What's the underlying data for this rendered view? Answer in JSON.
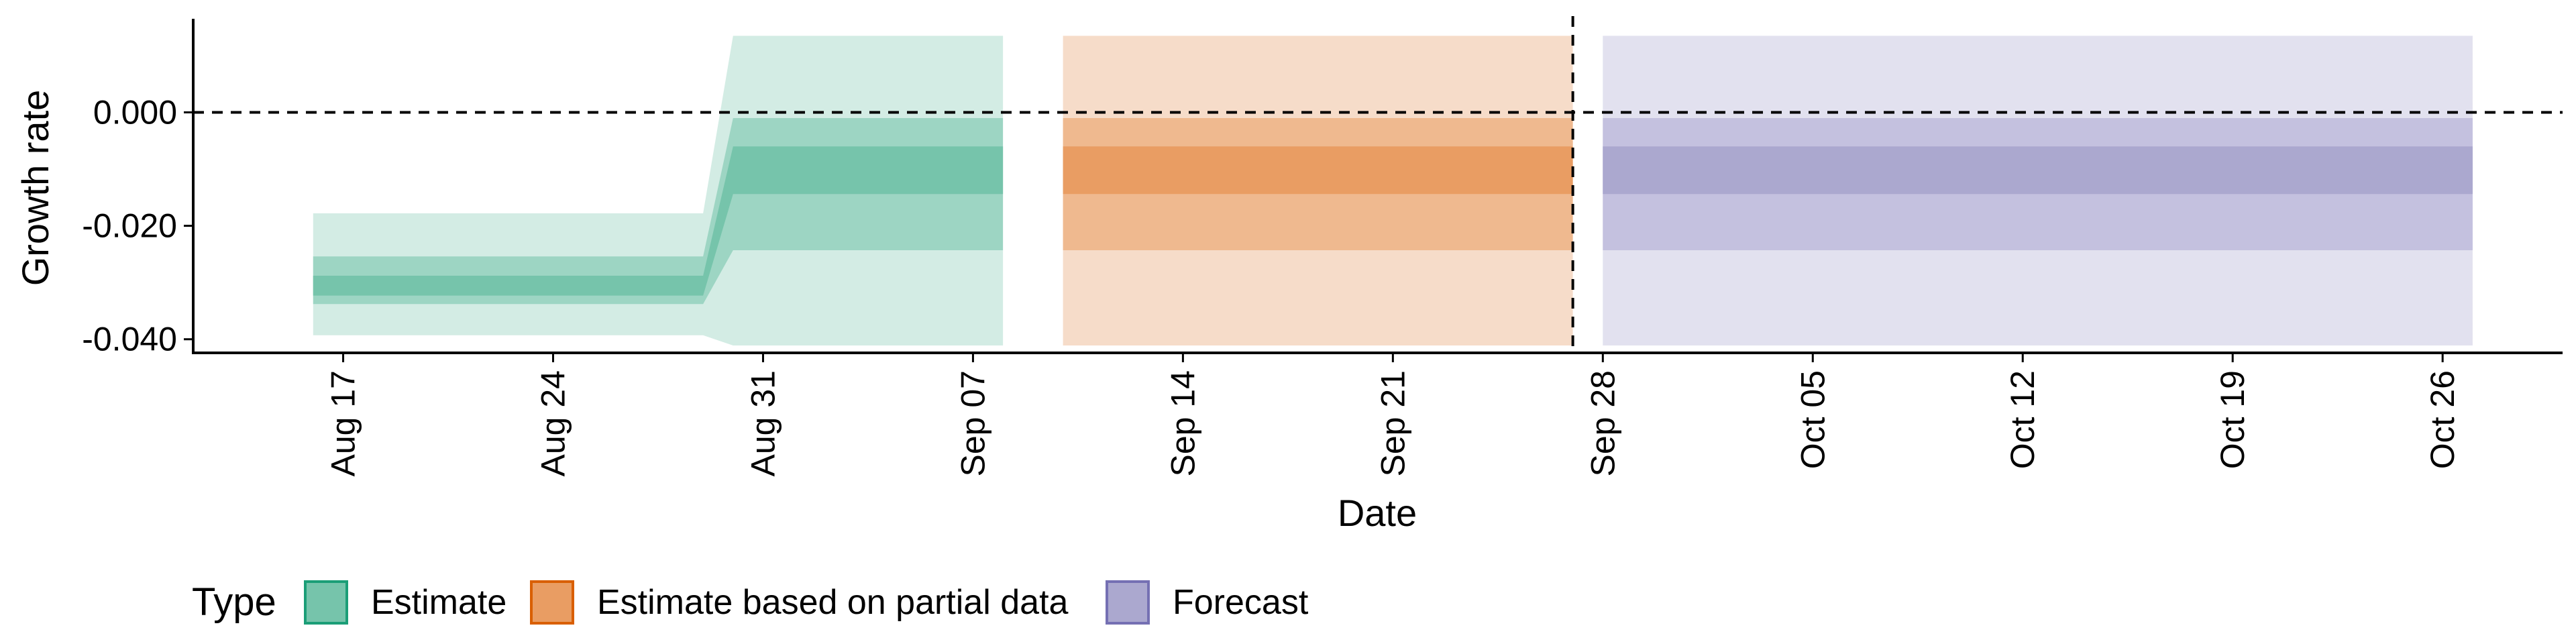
{
  "chart_data": {
    "type": "area",
    "xlabel": "Date",
    "ylabel": "Growth rate",
    "xlim": [
      "2020-08-12",
      "2020-10-30"
    ],
    "ylim": [
      -0.0424,
      0.0165
    ],
    "x_ticks": [
      {
        "date": "2020-08-17",
        "label": "Aug 17"
      },
      {
        "date": "2020-08-24",
        "label": "Aug 24"
      },
      {
        "date": "2020-08-31",
        "label": "Aug 31"
      },
      {
        "date": "2020-09-07",
        "label": "Sep 07"
      },
      {
        "date": "2020-09-14",
        "label": "Sep 14"
      },
      {
        "date": "2020-09-21",
        "label": "Sep 21"
      },
      {
        "date": "2020-09-28",
        "label": "Sep 28"
      },
      {
        "date": "2020-10-05",
        "label": "Oct 05"
      },
      {
        "date": "2020-10-12",
        "label": "Oct 12"
      },
      {
        "date": "2020-10-19",
        "label": "Oct 19"
      },
      {
        "date": "2020-10-26",
        "label": "Oct 26"
      }
    ],
    "y_ticks": [
      {
        "value": 0.0,
        "label": "0.000"
      },
      {
        "value": -0.02,
        "label": "-0.020"
      },
      {
        "value": -0.04,
        "label": "-0.040"
      }
    ],
    "hlines": [
      {
        "y": 0.0,
        "style": "dashed"
      }
    ],
    "vlines": [
      {
        "x": "2020-09-27",
        "style": "dashed"
      }
    ],
    "legend": {
      "title": "Type",
      "placement": "bottom",
      "items": [
        {
          "label": "Estimate",
          "fill": "#76c4ab",
          "stroke": "#1b9e77"
        },
        {
          "label": "Estimate based on partial data",
          "fill": "#e99d63",
          "stroke": "#d95f02"
        },
        {
          "label": "Forecast",
          "fill": "#aba8cf",
          "stroke": "#7570b3"
        }
      ]
    },
    "series": [
      {
        "name": "Estimate",
        "colors": {
          "outer": "#d3ece4",
          "middle": "#9dd5c3",
          "inner": "#76c4ab"
        },
        "points": [
          {
            "x": "2020-08-16",
            "outer": [
              -0.0393,
              -0.0178
            ],
            "middle": [
              -0.0338,
              -0.0254
            ],
            "inner": [
              -0.0323,
              -0.0288
            ]
          },
          {
            "x": "2020-08-29",
            "outer": [
              -0.0393,
              -0.0178
            ],
            "middle": [
              -0.0338,
              -0.0254
            ],
            "inner": [
              -0.0323,
              -0.0288
            ]
          },
          {
            "x": "2020-08-30",
            "outer": [
              -0.0411,
              0.0135
            ],
            "middle": [
              -0.0243,
              -0.001
            ],
            "inner": [
              -0.0144,
              -0.006
            ]
          },
          {
            "x": "2020-09-08",
            "outer": [
              -0.0411,
              0.0135
            ],
            "middle": [
              -0.0243,
              -0.001
            ],
            "inner": [
              -0.0144,
              -0.006
            ]
          }
        ]
      },
      {
        "name": "Estimate based on partial data",
        "colors": {
          "outer": "#f6dcc9",
          "middle": "#efb98f",
          "inner": "#e99d63"
        },
        "points": [
          {
            "x": "2020-09-10",
            "outer": [
              -0.0411,
              0.0135
            ],
            "middle": [
              -0.0243,
              -0.001
            ],
            "inner": [
              -0.0144,
              -0.006
            ]
          },
          {
            "x": "2020-09-27",
            "outer": [
              -0.0411,
              0.0135
            ],
            "middle": [
              -0.0243,
              -0.001
            ],
            "inner": [
              -0.0144,
              -0.006
            ]
          }
        ]
      },
      {
        "name": "Forecast",
        "colors": {
          "outer": "#e2e1ef",
          "middle": "#c4c1df",
          "inner": "#aba8cf"
        },
        "points": [
          {
            "x": "2020-09-28",
            "outer": [
              -0.0411,
              0.0135
            ],
            "middle": [
              -0.0243,
              -0.001
            ],
            "inner": [
              -0.0144,
              -0.006
            ]
          },
          {
            "x": "2020-10-27",
            "outer": [
              -0.0411,
              0.0135
            ],
            "middle": [
              -0.0243,
              -0.001
            ],
            "inner": [
              -0.0144,
              -0.006
            ]
          }
        ]
      }
    ]
  }
}
